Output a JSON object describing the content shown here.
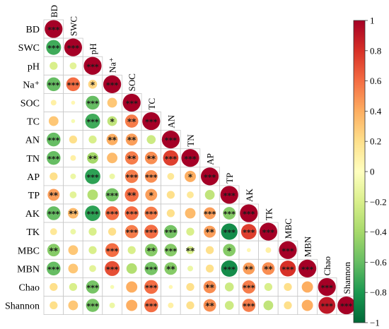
{
  "chart_data": {
    "type": "heatmap",
    "variables": [
      "BD",
      "SWC",
      "pH",
      "Na⁺",
      "SOC",
      "TC",
      "AN",
      "TN",
      "AP",
      "TP",
      "AK",
      "TK",
      "MBC",
      "MBN",
      "Chao",
      "Shannon"
    ],
    "triangle": "lower",
    "marker": "circle",
    "circle_size_encodes": "absolute correlation",
    "colorbar": {
      "position": "right",
      "range": [
        -1,
        1
      ],
      "ticks": [
        "1",
        "0.8",
        "0.6",
        "0.4",
        "0.2",
        "0",
        "−0.2",
        "−0.4",
        "−0.6",
        "−0.8",
        "−1"
      ],
      "colors": [
        "#a50026",
        "#d73027",
        "#f46d43",
        "#fdae61",
        "#fee08b",
        "#ffffbf",
        "#d9ef8b",
        "#a6d96a",
        "#66bd63",
        "#1a9850",
        "#006837"
      ]
    },
    "matrix": [
      [
        1
      ],
      [
        -0.7,
        1
      ],
      [
        -0.2,
        -0.15,
        1
      ],
      [
        -0.6,
        0.6,
        0.25,
        1
      ],
      [
        0.1,
        0.05,
        -0.6,
        0.3,
        1
      ],
      [
        0.3,
        -0.05,
        -0.7,
        -0.3,
        0.55,
        1
      ],
      [
        -0.6,
        0.2,
        -0.2,
        0.4,
        0.45,
        -0.25,
        1
      ],
      [
        -0.6,
        0.1,
        -0.4,
        0.35,
        0.55,
        0.5,
        0.75,
        1
      ],
      [
        0.2,
        -0.1,
        -0.75,
        -0.1,
        0.55,
        0.5,
        0.15,
        0.4,
        1
      ],
      [
        0.45,
        -0.15,
        -0.35,
        -0.55,
        0.6,
        0.45,
        0.2,
        0.15,
        -0.3,
        1
      ],
      [
        -0.6,
        0.35,
        -0.75,
        0.6,
        0.6,
        0.55,
        0.2,
        0.35,
        0.45,
        -0.5,
        1
      ],
      [
        0.15,
        -0.1,
        -0.2,
        0.2,
        0.55,
        0.6,
        -0.55,
        -0.2,
        0.45,
        -0.85,
        0.75,
        1
      ],
      [
        -0.5,
        0.3,
        -0.2,
        0.6,
        -0.2,
        -0.5,
        -0.5,
        -0.2,
        0.2,
        -0.5,
        0.05,
        0.1,
        1
      ],
      [
        -0.6,
        0.3,
        -0.15,
        0.7,
        -0.35,
        -0.55,
        -0.5,
        -0.1,
        0.2,
        -0.85,
        0.45,
        0.5,
        0.8,
        1
      ],
      [
        0.2,
        -0.2,
        -0.55,
        -0.05,
        0.4,
        0.6,
        0.05,
        0.2,
        0.5,
        -0.25,
        0.55,
        -0.2,
        0.2,
        0.4,
        1
      ],
      [
        0.2,
        0.3,
        -0.55,
        -0.1,
        0.4,
        0.6,
        0.1,
        0.2,
        0.5,
        -0.25,
        0.55,
        -0.3,
        0.2,
        0.4,
        0.9,
        1
      ]
    ],
    "significance": [
      [
        "***"
      ],
      [
        "***",
        "***"
      ],
      [
        "",
        "",
        "***"
      ],
      [
        "***",
        "***",
        "*",
        "***"
      ],
      [
        "",
        "",
        "***",
        "",
        "***"
      ],
      [
        "",
        "",
        "***",
        "*",
        "**",
        "***"
      ],
      [
        "***",
        "",
        "",
        "**",
        "**",
        "",
        "***"
      ],
      [
        "***",
        "",
        "**",
        "",
        "**",
        "**",
        "***",
        "***"
      ],
      [
        "",
        "",
        "***",
        "",
        "***",
        "***",
        "",
        "*",
        "***"
      ],
      [
        "**",
        "",
        "",
        "***",
        "**",
        "*",
        "",
        "",
        "",
        "***"
      ],
      [
        "***",
        "**",
        "***",
        "***",
        "***",
        "***",
        "",
        "",
        "***",
        "***",
        "***"
      ],
      [
        "",
        "",
        "",
        "",
        "***",
        "***",
        "***",
        "",
        "**",
        "***",
        "***",
        "***"
      ],
      [
        "**",
        "",
        "",
        "***",
        "",
        "**",
        "***",
        "**",
        "",
        "*",
        "",
        "",
        "***"
      ],
      [
        "***",
        "",
        "",
        "***",
        "",
        "***",
        "**",
        "",
        "",
        "***",
        "**",
        "**",
        "***",
        "***"
      ],
      [
        "",
        "",
        "***",
        "",
        "",
        "***",
        "",
        "",
        "**",
        "",
        "***",
        "",
        "",
        "",
        "***"
      ],
      [
        "",
        "",
        "***",
        "",
        "",
        "***",
        "",
        "",
        "**",
        "",
        "***",
        "",
        "",
        "",
        "***",
        "***"
      ]
    ]
  }
}
